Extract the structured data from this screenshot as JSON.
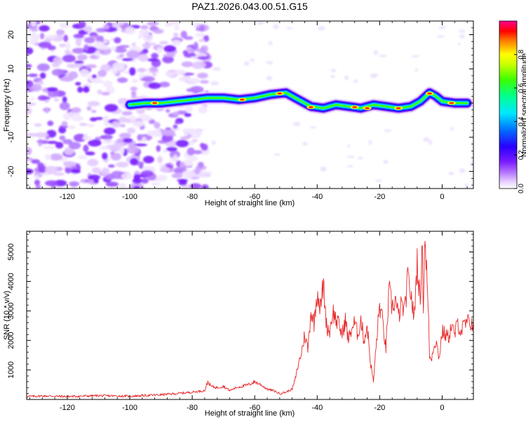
{
  "title": "PAZ1.2026.043.00.51.G15",
  "chart_data": [
    {
      "type": "heatmap",
      "xlabel": "Height of straight line (km)",
      "ylabel": "Frequency (Hz)",
      "xlim": [
        -133,
        10
      ],
      "ylim": [
        -25,
        24
      ],
      "xticks": [
        -120,
        -100,
        -80,
        -60,
        -40,
        -20,
        0
      ],
      "yticks": [
        -20,
        -10,
        0,
        10,
        20
      ],
      "colorbar": {
        "label": "Normalized spectral amplitude",
        "range": [
          0,
          1
        ],
        "ticks": [
          0.0,
          0.2,
          0.4,
          0.6,
          0.8
        ],
        "colormap": "rainbow (white-violet-blue-cyan-green-yellow-red-magenta)"
      },
      "ridge": {
        "description": "frequency of peak spectral amplitude vs height",
        "x": [
          -100,
          -95,
          -90,
          -85,
          -80,
          -75,
          -70,
          -65,
          -60,
          -55,
          -50,
          -46,
          -42,
          -38,
          -34,
          -30,
          -26,
          -22,
          -18,
          -14,
          -10,
          -7,
          -4,
          -2,
          0,
          4,
          8
        ],
        "y": [
          -0.5,
          0,
          0,
          0.5,
          1,
          1.5,
          1.5,
          1,
          1.5,
          2.5,
          3,
          1,
          -1,
          -1.5,
          -0.5,
          -1,
          -1.5,
          -0.5,
          -1,
          -1.5,
          -1,
          0.5,
          3,
          2,
          0.5,
          0,
          0
        ]
      }
    },
    {
      "type": "line",
      "xlabel": "Height of straight line (km)",
      "ylabel": "SNR (10 * v/v)",
      "xlim": [
        -133,
        10
      ],
      "ylim": [
        0,
        5700
      ],
      "xticks": [
        -120,
        -100,
        -80,
        -60,
        -40,
        -20,
        0
      ],
      "yticks": [
        1000,
        2000,
        3000,
        4000,
        5000
      ],
      "color": "#e8282a",
      "series": [
        {
          "x": [
            -133,
            -128,
            -120,
            -110,
            -100,
            -90,
            -85,
            -80,
            -76,
            -75,
            -74,
            -72,
            -70,
            -68,
            -66,
            -64,
            -62,
            -60,
            -58,
            -56,
            -54,
            -52,
            -50,
            -48,
            -47,
            -46,
            -45,
            -44,
            -43,
            -42,
            -41,
            -40,
            -39,
            -38,
            -37,
            -36,
            -35,
            -34,
            -33,
            -32,
            -31,
            -30,
            -29,
            -28,
            -27,
            -26,
            -25,
            -24,
            -23,
            -22,
            -21,
            -20,
            -19,
            -18,
            -17,
            -16,
            -15,
            -14,
            -13,
            -12,
            -11,
            -10,
            -9,
            -8,
            -7,
            -6.5,
            -6,
            -5.5,
            -5,
            -4.5,
            -4,
            -3.5,
            -3,
            -2,
            -1,
            0,
            1,
            2,
            3,
            4,
            5,
            6,
            7,
            8,
            10
          ],
          "y": [
            100,
            120,
            100,
            130,
            110,
            160,
            200,
            250,
            300,
            600,
            450,
            400,
            450,
            300,
            400,
            450,
            500,
            600,
            500,
            350,
            300,
            200,
            250,
            350,
            700,
            1200,
            1600,
            2200,
            1700,
            3000,
            2600,
            3700,
            3100,
            3900,
            2500,
            2300,
            3000,
            2700,
            2500,
            2200,
            2700,
            2000,
            2400,
            2600,
            2200,
            2700,
            2000,
            2500,
            1300,
            600,
            2000,
            3200,
            2600,
            1700,
            3700,
            3100,
            3400,
            2800,
            3200,
            3000,
            4100,
            3600,
            2700,
            4700,
            3200,
            5400,
            3300,
            5700,
            4400,
            3100,
            1500,
            1300,
            1700,
            2000,
            1400,
            2300,
            2200,
            2100,
            2500,
            2200,
            2600,
            2300,
            2500,
            2600,
            2600
          ]
        }
      ]
    }
  ]
}
